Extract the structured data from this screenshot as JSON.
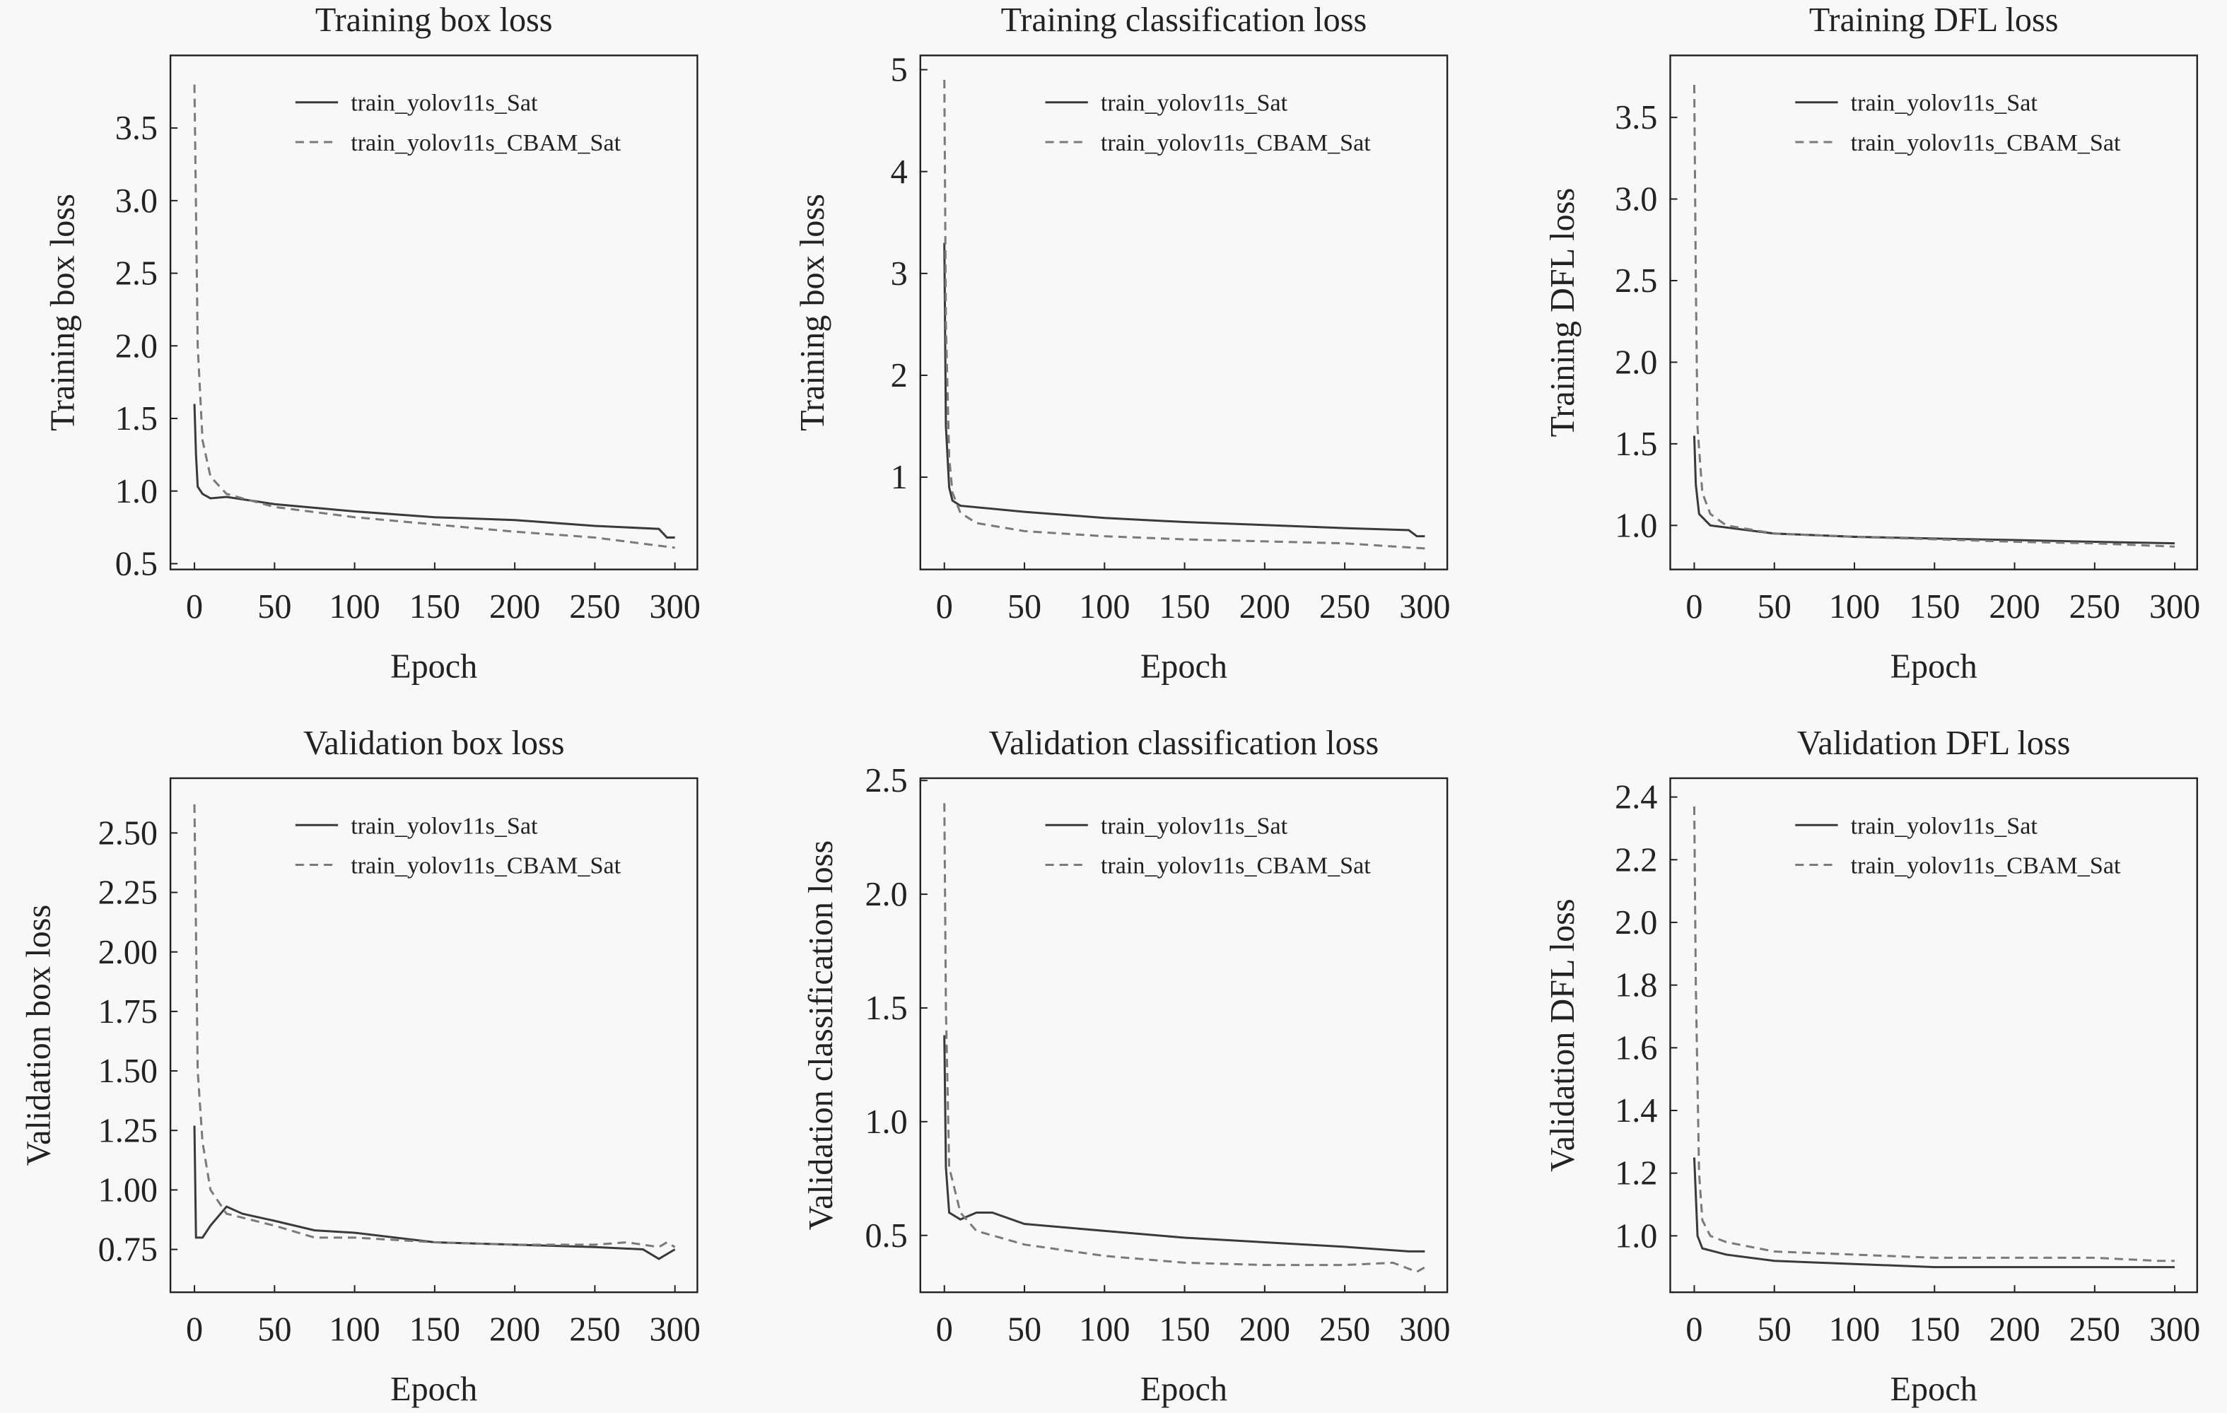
{
  "chart_data": [
    {
      "type": "line",
      "title": "Training box loss",
      "xlabel": "Epoch",
      "ylabel": "Training box loss",
      "xlim": [
        -15,
        314
      ],
      "ylim": [
        0.46,
        4.0
      ],
      "xticks": [
        0,
        50,
        100,
        150,
        200,
        250,
        300
      ],
      "yticks": [
        0.5,
        1.0,
        1.5,
        2.0,
        2.5,
        3.0,
        3.5
      ],
      "ytick_labels": [
        "0.5",
        "1.0",
        "1.5",
        "2.0",
        "2.5",
        "3.0",
        "3.5"
      ],
      "grid": false,
      "legend": "top-right",
      "series": [
        {
          "name": "train_yolov11s_Sat",
          "style": "solid",
          "x": [
            0,
            1,
            2,
            5,
            10,
            20,
            50,
            100,
            150,
            200,
            250,
            290,
            295,
            300
          ],
          "y": [
            1.6,
            1.25,
            1.03,
            0.98,
            0.95,
            0.96,
            0.91,
            0.86,
            0.82,
            0.8,
            0.76,
            0.74,
            0.68,
            0.68
          ]
        },
        {
          "name": "train_yolov11s_CBAM_Sat",
          "style": "dashed",
          "x": [
            0,
            2,
            5,
            10,
            20,
            50,
            100,
            150,
            200,
            250,
            300
          ],
          "y": [
            3.8,
            2.0,
            1.35,
            1.1,
            0.98,
            0.89,
            0.82,
            0.77,
            0.72,
            0.68,
            0.61
          ]
        }
      ]
    },
    {
      "type": "line",
      "title": "Training classification loss",
      "xlabel": "Epoch",
      "ylabel": "Training box loss",
      "xlim": [
        -15,
        314
      ],
      "ylim": [
        0.094,
        5.14
      ],
      "xticks": [
        0,
        50,
        100,
        150,
        200,
        250,
        300
      ],
      "yticks": [
        1,
        2,
        3,
        4,
        5
      ],
      "ytick_labels": [
        "1",
        "2",
        "3",
        "4",
        "5"
      ],
      "grid": false,
      "legend": "top-right",
      "series": [
        {
          "name": "train_yolov11s_Sat",
          "style": "solid",
          "x": [
            0,
            1,
            3,
            5,
            10,
            50,
            100,
            150,
            200,
            250,
            290,
            295,
            300
          ],
          "y": [
            3.3,
            1.5,
            0.9,
            0.77,
            0.72,
            0.66,
            0.6,
            0.56,
            0.53,
            0.5,
            0.48,
            0.42,
            0.42
          ]
        },
        {
          "name": "train_yolov11s_CBAM_Sat",
          "style": "dashed",
          "x": [
            0,
            1,
            3,
            5,
            10,
            20,
            50,
            100,
            150,
            200,
            250,
            300
          ],
          "y": [
            4.9,
            2.5,
            1.2,
            0.85,
            0.65,
            0.55,
            0.47,
            0.42,
            0.39,
            0.37,
            0.35,
            0.3
          ]
        }
      ]
    },
    {
      "type": "line",
      "title": "Training DFL loss",
      "xlabel": "Epoch",
      "ylabel": "Training DFL loss",
      "xlim": [
        -15,
        314
      ],
      "ylim": [
        0.73,
        3.88
      ],
      "xticks": [
        0,
        50,
        100,
        150,
        200,
        250,
        300
      ],
      "yticks": [
        1.0,
        1.5,
        2.0,
        2.5,
        3.0,
        3.5
      ],
      "ytick_labels": [
        "1.0",
        "1.5",
        "2.0",
        "2.5",
        "3.0",
        "3.5"
      ],
      "grid": false,
      "legend": "top-right",
      "series": [
        {
          "name": "train_yolov11s_Sat",
          "style": "solid",
          "x": [
            0,
            1,
            3,
            10,
            50,
            100,
            150,
            200,
            250,
            300
          ],
          "y": [
            1.55,
            1.25,
            1.07,
            1.0,
            0.95,
            0.93,
            0.92,
            0.91,
            0.9,
            0.89
          ]
        },
        {
          "name": "train_yolov11s_CBAM_Sat",
          "style": "dashed",
          "x": [
            0,
            1,
            2,
            5,
            10,
            20,
            50,
            100,
            200,
            250,
            300
          ],
          "y": [
            3.7,
            2.5,
            1.6,
            1.2,
            1.07,
            1.0,
            0.95,
            0.93,
            0.9,
            0.89,
            0.87
          ]
        }
      ]
    },
    {
      "type": "line",
      "title": "Validation box loss",
      "xlabel": "Epoch",
      "ylabel": "Validation box loss",
      "xlim": [
        -15,
        314
      ],
      "ylim": [
        0.57,
        2.73
      ],
      "xticks": [
        0,
        50,
        100,
        150,
        200,
        250,
        300
      ],
      "yticks": [
        0.75,
        1.0,
        1.25,
        1.5,
        1.75,
        2.0,
        2.25,
        2.5
      ],
      "ytick_labels": [
        "0.75",
        "1.00",
        "1.25",
        "1.50",
        "1.75",
        "2.00",
        "2.25",
        "2.50"
      ],
      "grid": false,
      "legend": "top-right",
      "series": [
        {
          "name": "train_yolov11s_Sat",
          "style": "solid",
          "x": [
            0,
            1,
            5,
            10,
            20,
            30,
            50,
            75,
            100,
            150,
            200,
            250,
            280,
            290,
            300
          ],
          "y": [
            1.27,
            0.8,
            0.8,
            0.85,
            0.93,
            0.9,
            0.87,
            0.83,
            0.82,
            0.78,
            0.77,
            0.76,
            0.75,
            0.71,
            0.75
          ]
        },
        {
          "name": "train_yolov11s_CBAM_Sat",
          "style": "dashed",
          "x": [
            0,
            2,
            5,
            10,
            20,
            50,
            75,
            100,
            150,
            200,
            250,
            270,
            290,
            295,
            300
          ],
          "y": [
            2.62,
            1.5,
            1.2,
            1.0,
            0.9,
            0.85,
            0.8,
            0.8,
            0.78,
            0.77,
            0.77,
            0.78,
            0.76,
            0.78,
            0.76
          ]
        }
      ]
    },
    {
      "type": "line",
      "title": "Validation classification loss",
      "xlabel": "Epoch",
      "ylabel": "Validation classification loss",
      "xlim": [
        -15,
        314
      ],
      "ylim": [
        0.25,
        2.51
      ],
      "xticks": [
        0,
        50,
        100,
        150,
        200,
        250,
        300
      ],
      "yticks": [
        0.5,
        1.0,
        1.5,
        2.0,
        2.5
      ],
      "ytick_labels": [
        "0.5",
        "1.0",
        "1.5",
        "2.0",
        "2.5"
      ],
      "grid": false,
      "legend": "top-right",
      "series": [
        {
          "name": "train_yolov11s_Sat",
          "style": "solid",
          "x": [
            0,
            1,
            3,
            10,
            20,
            30,
            50,
            100,
            150,
            200,
            250,
            290,
            300
          ],
          "y": [
            1.38,
            0.8,
            0.6,
            0.57,
            0.6,
            0.6,
            0.55,
            0.52,
            0.49,
            0.47,
            0.45,
            0.43,
            0.43
          ]
        },
        {
          "name": "train_yolov11s_CBAM_Sat",
          "style": "dashed",
          "x": [
            0,
            1,
            3,
            10,
            20,
            50,
            100,
            150,
            200,
            250,
            280,
            295,
            300
          ],
          "y": [
            2.4,
            1.5,
            0.8,
            0.6,
            0.52,
            0.46,
            0.41,
            0.38,
            0.37,
            0.37,
            0.38,
            0.34,
            0.36
          ]
        }
      ]
    },
    {
      "type": "line",
      "title": "Validation DFL loss",
      "xlabel": "Epoch",
      "ylabel": "Validation DFL loss",
      "xlim": [
        -15,
        314
      ],
      "ylim": [
        0.82,
        2.46
      ],
      "xticks": [
        0,
        50,
        100,
        150,
        200,
        250,
        300
      ],
      "yticks": [
        1.0,
        1.2,
        1.4,
        1.6,
        1.8,
        2.0,
        2.2,
        2.4
      ],
      "ytick_labels": [
        "1.0",
        "1.2",
        "1.4",
        "1.6",
        "1.8",
        "2.0",
        "2.2",
        "2.4"
      ],
      "grid": false,
      "legend": "top-right",
      "series": [
        {
          "name": "train_yolov11s_Sat",
          "style": "solid",
          "x": [
            0,
            2,
            5,
            20,
            50,
            100,
            150,
            200,
            250,
            300
          ],
          "y": [
            1.25,
            1.0,
            0.96,
            0.94,
            0.92,
            0.91,
            0.9,
            0.9,
            0.9,
            0.9
          ]
        },
        {
          "name": "train_yolov11s_CBAM_Sat",
          "style": "dashed",
          "x": [
            0,
            1,
            3,
            5,
            10,
            20,
            50,
            100,
            150,
            200,
            250,
            290,
            300
          ],
          "y": [
            2.37,
            1.8,
            1.2,
            1.05,
            1.0,
            0.98,
            0.95,
            0.94,
            0.93,
            0.93,
            0.93,
            0.92,
            0.92
          ]
        }
      ]
    }
  ],
  "colors": {
    "solid_series": "#3a3a3a",
    "dashed_series": "#7a7a7a",
    "background": "#f8f8f8",
    "axes": "#222222"
  }
}
